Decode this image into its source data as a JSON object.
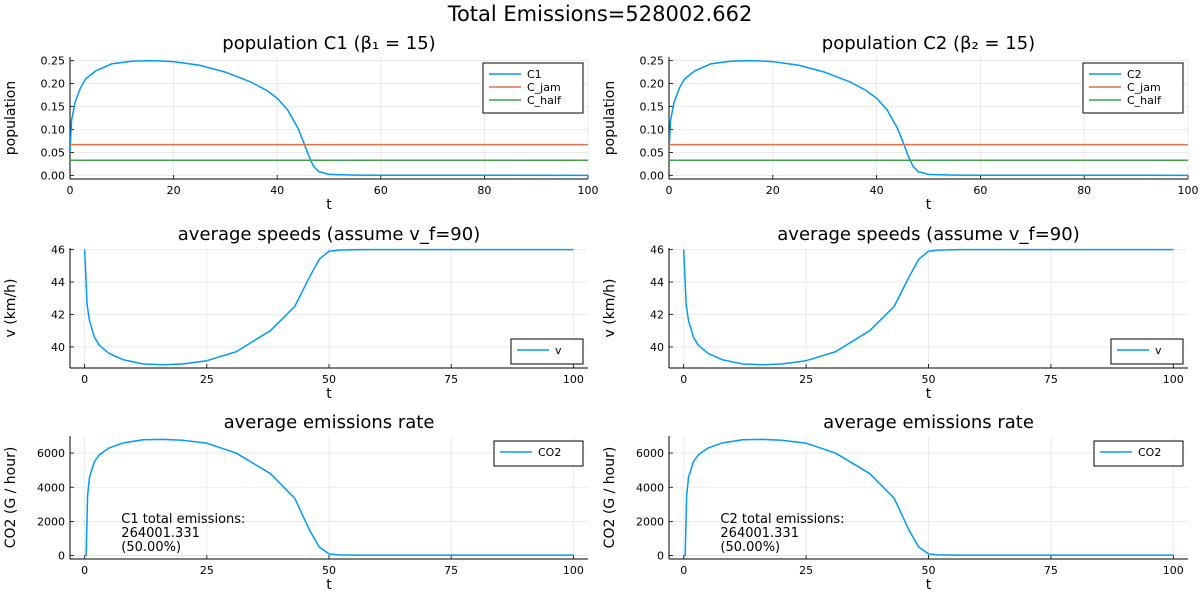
{
  "suptitle": "Total Emissions=528002.662",
  "colors": {
    "c": "#009af9",
    "jam": "#e26f46",
    "half": "#3da44d",
    "axis": "#000000",
    "grid": "#e6e6e6"
  },
  "chart_data": [
    {
      "id": "pop-c1",
      "type": "line",
      "title": "population C1 (β₁ = 15)",
      "xlabel": "t",
      "ylabel": "population",
      "xlim": [
        0,
        100
      ],
      "ylim": [
        -0.008,
        0.258
      ],
      "xticks": [
        0,
        20,
        40,
        60,
        80,
        100
      ],
      "xtick_labels": [
        "0",
        "20",
        "40",
        "60",
        "80",
        "100"
      ],
      "yticks": [
        0,
        0.05,
        0.1,
        0.15,
        0.2,
        0.25
      ],
      "ytick_labels": [
        "0.00",
        "0.05",
        "0.10",
        "0.15",
        "0.20",
        "0.25"
      ],
      "legend": "top-right",
      "grid": true,
      "series": [
        {
          "name": "C1",
          "color": "#009af9",
          "x": [
            0,
            0.3,
            1,
            2,
            3,
            5,
            8,
            12,
            16,
            20,
            25,
            30,
            35,
            38,
            40,
            42,
            44,
            45,
            46,
            47,
            48,
            50,
            55,
            60,
            100
          ],
          "y": [
            0.05,
            0.12,
            0.16,
            0.19,
            0.21,
            0.228,
            0.243,
            0.249,
            0.25,
            0.248,
            0.24,
            0.225,
            0.203,
            0.185,
            0.168,
            0.143,
            0.103,
            0.075,
            0.045,
            0.02,
            0.008,
            0.002,
            0.0005,
            0.0002,
            0.0
          ]
        },
        {
          "name": "C_jam",
          "color": "#e26f46",
          "x": [
            0,
            100
          ],
          "y": [
            0.067,
            0.067
          ]
        },
        {
          "name": "C_half",
          "color": "#3da44d",
          "x": [
            0,
            100
          ],
          "y": [
            0.033,
            0.033
          ]
        }
      ]
    },
    {
      "id": "pop-c2",
      "type": "line",
      "title": "population C2 (β₂ = 15)",
      "xlabel": "t",
      "ylabel": "population",
      "xlim": [
        0,
        100
      ],
      "ylim": [
        -0.008,
        0.258
      ],
      "xticks": [
        0,
        20,
        40,
        60,
        80,
        100
      ],
      "xtick_labels": [
        "0",
        "20",
        "40",
        "60",
        "80",
        "100"
      ],
      "yticks": [
        0,
        0.05,
        0.1,
        0.15,
        0.2,
        0.25
      ],
      "ytick_labels": [
        "0.00",
        "0.05",
        "0.10",
        "0.15",
        "0.20",
        "0.25"
      ],
      "legend": "top-right",
      "grid": true,
      "series": [
        {
          "name": "C2",
          "color": "#009af9",
          "x": [
            0,
            0.3,
            1,
            2,
            3,
            5,
            8,
            12,
            16,
            20,
            25,
            30,
            35,
            38,
            40,
            42,
            44,
            45,
            46,
            47,
            48,
            50,
            55,
            60,
            100
          ],
          "y": [
            0.05,
            0.12,
            0.16,
            0.19,
            0.21,
            0.228,
            0.243,
            0.249,
            0.25,
            0.248,
            0.24,
            0.225,
            0.203,
            0.185,
            0.168,
            0.143,
            0.103,
            0.075,
            0.045,
            0.02,
            0.008,
            0.002,
            0.0005,
            0.0002,
            0.0
          ]
        },
        {
          "name": "C_jam",
          "color": "#e26f46",
          "x": [
            0,
            100
          ],
          "y": [
            0.067,
            0.067
          ]
        },
        {
          "name": "C_half",
          "color": "#3da44d",
          "x": [
            0,
            100
          ],
          "y": [
            0.033,
            0.033
          ]
        }
      ]
    },
    {
      "id": "speed-c1",
      "type": "line",
      "title": "average speeds (assume v_f=90)",
      "xlabel": "t",
      "ylabel": "v (km/h)",
      "xlim": [
        -3,
        103
      ],
      "ylim": [
        38.7,
        46.1
      ],
      "xticks": [
        0,
        25,
        50,
        75,
        100
      ],
      "xtick_labels": [
        "0",
        "25",
        "50",
        "75",
        "100"
      ],
      "yticks": [
        40,
        42,
        44,
        46
      ],
      "ytick_labels": [
        "40",
        "42",
        "44",
        "46"
      ],
      "legend": "bottom-right",
      "grid": true,
      "series": [
        {
          "name": "v",
          "color": "#009af9",
          "x": [
            0,
            0.5,
            1,
            2,
            3,
            5,
            8,
            12,
            16,
            20,
            25,
            31,
            38,
            43,
            46,
            48,
            50,
            52,
            56,
            60,
            100
          ],
          "y": [
            46,
            42.6,
            41.6,
            40.6,
            40.1,
            39.6,
            39.2,
            38.95,
            38.9,
            38.95,
            39.15,
            39.7,
            41.0,
            42.5,
            44.3,
            45.4,
            45.9,
            45.97,
            46.0,
            46.0,
            46.0
          ]
        }
      ]
    },
    {
      "id": "speed-c2",
      "type": "line",
      "title": "average speeds (assume v_f=90)",
      "xlabel": "t",
      "ylabel": "v (km/h)",
      "xlim": [
        -3,
        103
      ],
      "ylim": [
        38.7,
        46.1
      ],
      "xticks": [
        0,
        25,
        50,
        75,
        100
      ],
      "xtick_labels": [
        "0",
        "25",
        "50",
        "75",
        "100"
      ],
      "yticks": [
        40,
        42,
        44,
        46
      ],
      "ytick_labels": [
        "40",
        "42",
        "44",
        "46"
      ],
      "legend": "bottom-right",
      "grid": true,
      "series": [
        {
          "name": "v",
          "color": "#009af9",
          "x": [
            0,
            0.5,
            1,
            2,
            3,
            5,
            8,
            12,
            16,
            20,
            25,
            31,
            38,
            43,
            46,
            48,
            50,
            52,
            56,
            60,
            100
          ],
          "y": [
            46,
            42.6,
            41.6,
            40.6,
            40.1,
            39.6,
            39.2,
            38.95,
            38.9,
            38.95,
            39.15,
            39.7,
            41.0,
            42.5,
            44.3,
            45.4,
            45.9,
            45.97,
            46.0,
            46.0,
            46.0
          ]
        }
      ]
    },
    {
      "id": "emis-c1",
      "type": "line",
      "title": "average emissions rate",
      "xlabel": "t",
      "ylabel": "CO2 (G / hour)",
      "xlim": [
        -3,
        103
      ],
      "ylim": [
        -200,
        7000
      ],
      "xticks": [
        0,
        25,
        50,
        75,
        100
      ],
      "xtick_labels": [
        "0",
        "25",
        "50",
        "75",
        "100"
      ],
      "yticks": [
        0,
        2000,
        4000,
        6000
      ],
      "ytick_labels": [
        "0",
        "2000",
        "4000",
        "6000"
      ],
      "legend": "top-right",
      "grid": true,
      "annotation": {
        "lines": [
          "C1 total emissions:",
          "264001.331",
          "(50.00%)"
        ],
        "x": 7.5,
        "y": 1900
      },
      "series": [
        {
          "name": "CO2",
          "color": "#009af9",
          "x": [
            0,
            0.3,
            0.6,
            1,
            2,
            3,
            5,
            8,
            12,
            16,
            20,
            25,
            31,
            38,
            43,
            46,
            48,
            50,
            52,
            56,
            60,
            100
          ],
          "y": [
            0,
            0,
            3500,
            4600,
            5500,
            5900,
            6300,
            6600,
            6780,
            6800,
            6750,
            6580,
            6000,
            4800,
            3350,
            1500,
            500,
            100,
            40,
            30,
            30,
            30
          ]
        }
      ]
    },
    {
      "id": "emis-c2",
      "type": "line",
      "title": "average emissions rate",
      "xlabel": "t",
      "ylabel": "CO2 (G / hour)",
      "xlim": [
        -3,
        103
      ],
      "ylim": [
        -200,
        7000
      ],
      "xticks": [
        0,
        25,
        50,
        75,
        100
      ],
      "xtick_labels": [
        "0",
        "25",
        "50",
        "75",
        "100"
      ],
      "yticks": [
        0,
        2000,
        4000,
        6000
      ],
      "ytick_labels": [
        "0",
        "2000",
        "4000",
        "6000"
      ],
      "legend": "top-right",
      "grid": true,
      "annotation": {
        "lines": [
          "C2 total emissions:",
          "264001.331",
          "(50.00%)"
        ],
        "x": 7.5,
        "y": 1900
      },
      "series": [
        {
          "name": "CO2",
          "color": "#009af9",
          "x": [
            0,
            0.3,
            0.6,
            1,
            2,
            3,
            5,
            8,
            12,
            16,
            20,
            25,
            31,
            38,
            43,
            46,
            48,
            50,
            52,
            56,
            60,
            100
          ],
          "y": [
            0,
            0,
            3500,
            4600,
            5500,
            5900,
            6300,
            6600,
            6780,
            6800,
            6750,
            6580,
            6000,
            4800,
            3350,
            1500,
            500,
            100,
            40,
            30,
            30,
            30
          ]
        }
      ]
    }
  ]
}
